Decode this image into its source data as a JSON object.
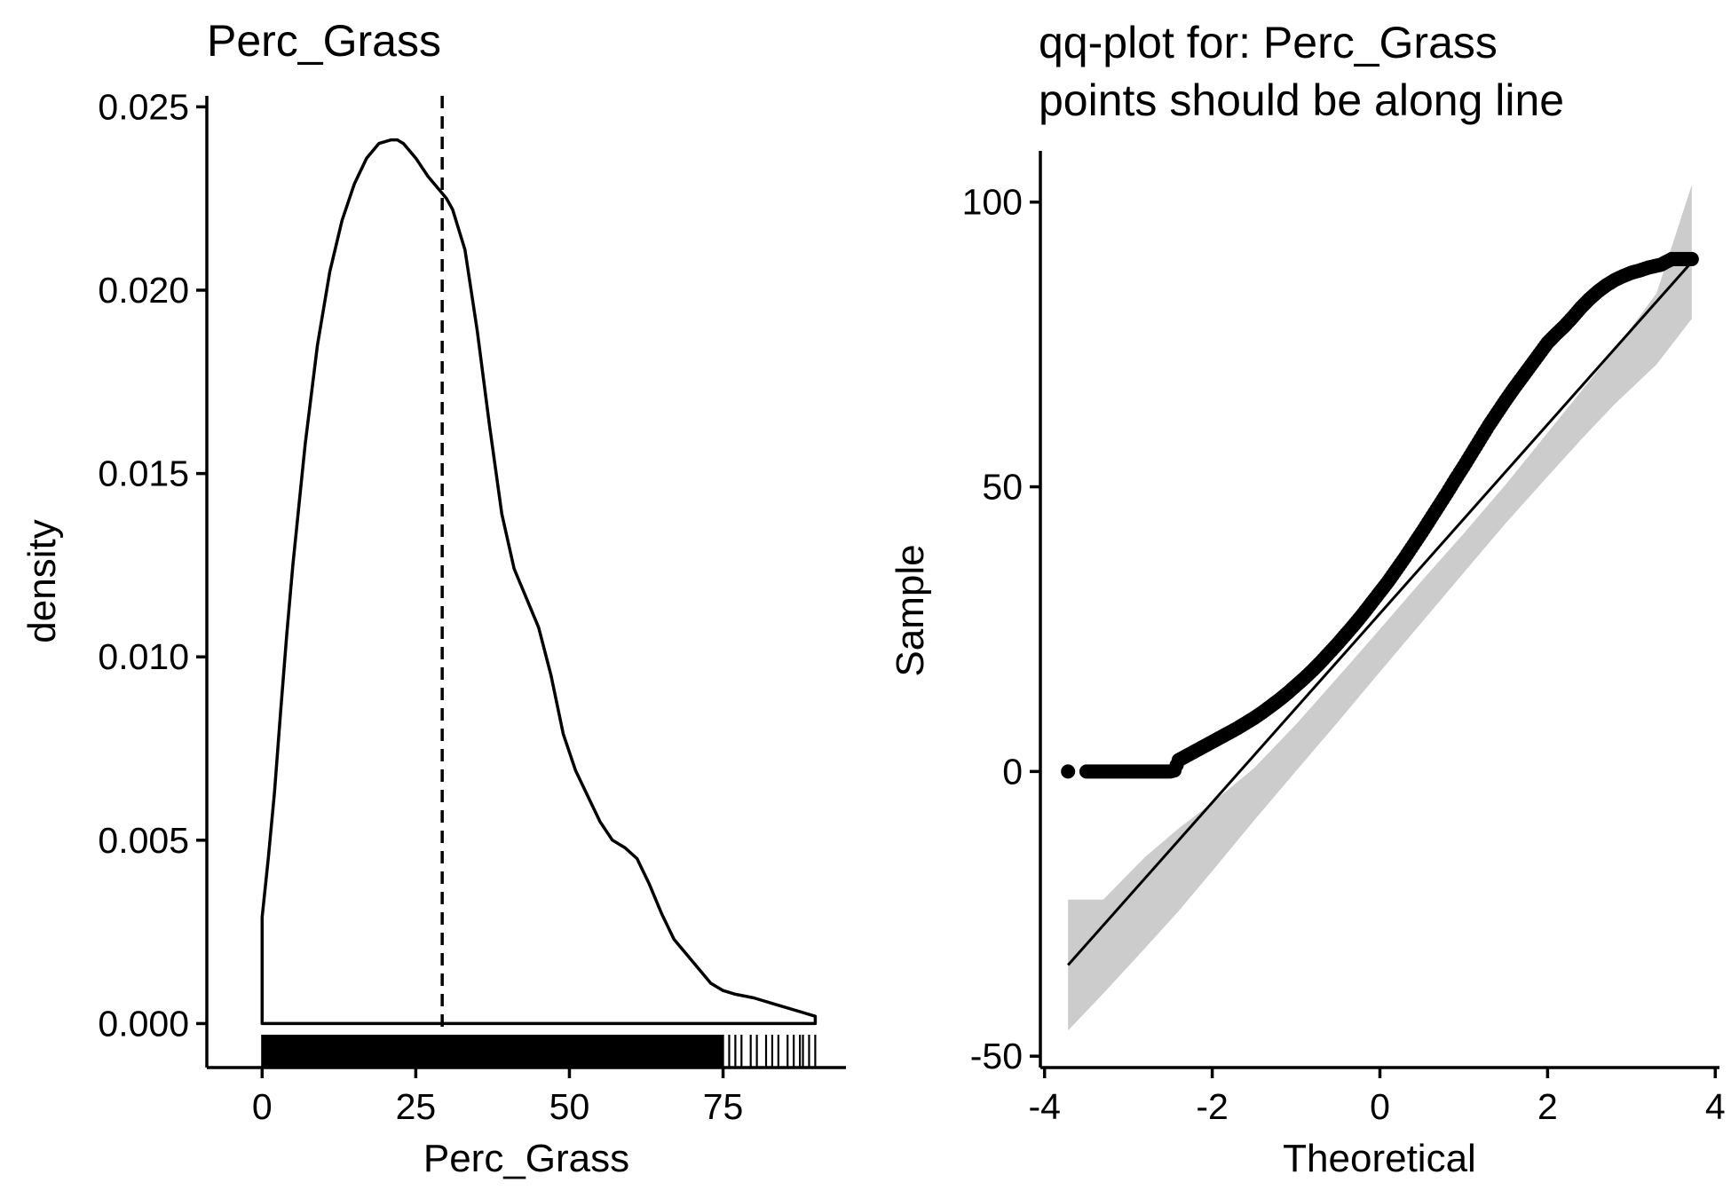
{
  "chart_data": [
    {
      "type": "line",
      "title": "Perc_Grass",
      "xlabel": "Perc_Grass",
      "ylabel": "density",
      "xlim": [
        -9,
        95
      ],
      "ylim": [
        -0.0012,
        0.0253
      ],
      "x_ticks": [
        0,
        25,
        50,
        75
      ],
      "x_tick_labels": [
        "0",
        "25",
        "50",
        "75"
      ],
      "y_ticks": [
        0,
        0.005,
        0.01,
        0.015,
        0.02,
        0.025
      ],
      "y_tick_labels": [
        "0.000",
        "0.005",
        "0.010",
        "0.015",
        "0.020",
        "0.025"
      ],
      "grid": false,
      "density_curve": {
        "x": [
          0,
          0,
          1,
          2,
          3,
          4,
          5,
          7,
          9,
          11,
          13,
          15,
          17,
          19,
          21,
          22,
          23,
          25,
          27,
          29,
          30,
          31,
          33,
          35,
          37,
          39,
          41,
          43,
          45,
          47,
          49,
          51,
          53,
          55,
          57,
          59,
          61,
          63,
          65,
          67,
          69,
          71,
          73,
          75,
          77,
          80,
          84,
          88,
          90,
          90
        ],
        "y": [
          0,
          0.0029,
          0.0045,
          0.0063,
          0.0085,
          0.0106,
          0.0125,
          0.0158,
          0.0185,
          0.0205,
          0.0219,
          0.0229,
          0.0236,
          0.024,
          0.0241,
          0.0241,
          0.024,
          0.0236,
          0.0231,
          0.0227,
          0.0225,
          0.0222,
          0.0211,
          0.0189,
          0.0163,
          0.0139,
          0.0124,
          0.0116,
          0.0108,
          0.0095,
          0.0079,
          0.0069,
          0.0062,
          0.0055,
          0.005,
          0.0048,
          0.0045,
          0.0038,
          0.003,
          0.0023,
          0.0019,
          0.0015,
          0.0011,
          0.0009,
          0.0008,
          0.0007,
          0.0005,
          0.0003,
          0.0002,
          0
        ]
      },
      "mean_line": 29.3,
      "rug": {
        "dense_range": [
          0,
          75
        ],
        "sparse_x": [
          76,
          77,
          78,
          79.5,
          80.5,
          82,
          83,
          84,
          85.5,
          86.5,
          87.5,
          88,
          89,
          90
        ]
      }
    },
    {
      "type": "scatter",
      "title": "qq-plot for: Perc_Grass\npoints should be along line",
      "xlabel": "Theoretical",
      "ylabel": "Sample",
      "xlim": [
        -4.05,
        4.05
      ],
      "ylim": [
        -52,
        109
      ],
      "x_ticks": [
        -4,
        -2,
        0,
        2,
        4
      ],
      "x_tick_labels": [
        "-4",
        "-2",
        "0",
        "2",
        "4"
      ],
      "y_ticks": [
        -50,
        0,
        50,
        100
      ],
      "y_tick_labels": [
        "-50",
        "0",
        "50",
        "100"
      ],
      "grid": false,
      "reference_line": {
        "x": [
          -3.72,
          3.72
        ],
        "y": [
          -34,
          89.5
        ]
      },
      "confidence_band": {
        "x": [
          -3.72,
          -3.3,
          -2.8,
          -2.4,
          -2,
          -1.5,
          -1,
          -0.5,
          0,
          0.5,
          1,
          1.5,
          2,
          2.4,
          2.8,
          3.3,
          3.72
        ],
        "lower": [
          -45.5,
          -39,
          -31,
          -24.5,
          -17.5,
          -8.6,
          0.1,
          8.7,
          17.5,
          26.2,
          34.9,
          43.6,
          51.8,
          58.3,
          64.5,
          71.5,
          79.5
        ],
        "upper": [
          -22.5,
          -22.5,
          -15,
          -10,
          -5.5,
          0.6,
          8.3,
          16.6,
          25,
          33.5,
          41.8,
          50.4,
          59.5,
          66.8,
          74,
          84,
          103
        ]
      },
      "qq_points": {
        "theoretical": [
          -3.72,
          -3.5,
          -3.4,
          -3.3,
          -3.2,
          -3.1,
          -3,
          -2.9,
          -2.8,
          -2.7,
          -2.6,
          -2.5,
          -2.45,
          -2.4,
          -2.3,
          -2.2,
          -2.1,
          -2,
          -1.9,
          -1.8,
          -1.7,
          -1.6,
          -1.5,
          -1.4,
          -1.3,
          -1.2,
          -1.1,
          -1,
          -0.9,
          -0.8,
          -0.7,
          -0.6,
          -0.5,
          -0.4,
          -0.3,
          -0.2,
          -0.1,
          0,
          0.1,
          0.2,
          0.3,
          0.4,
          0.5,
          0.6,
          0.7,
          0.8,
          0.9,
          1,
          1.1,
          1.2,
          1.3,
          1.4,
          1.5,
          1.6,
          1.7,
          1.8,
          1.9,
          2,
          2.1,
          2.2,
          2.3,
          2.4,
          2.5,
          2.6,
          2.7,
          2.8,
          2.9,
          3,
          3.1,
          3.2,
          3.35,
          3.48,
          3.72
        ],
        "sample": [
          0,
          0,
          0,
          0,
          0,
          0,
          0,
          0,
          0,
          0,
          0,
          0,
          0.2,
          2,
          2.8,
          3.6,
          4.4,
          5.2,
          6,
          6.8,
          7.6,
          8.5,
          9.4,
          10.4,
          11.5,
          12.6,
          13.8,
          15.1,
          16.4,
          17.8,
          19.3,
          20.9,
          22.5,
          24.2,
          25.9,
          27.7,
          29.6,
          31.5,
          33.4,
          35.5,
          37.6,
          39.8,
          42,
          44.3,
          46.6,
          48.9,
          51.3,
          53.6,
          56,
          58.4,
          60.8,
          63,
          65.2,
          67.3,
          69.3,
          71.3,
          73.3,
          75.3,
          76.8,
          78.2,
          79.8,
          81.5,
          83,
          84.3,
          85.4,
          86.3,
          87,
          87.6,
          88,
          88.5,
          89,
          90,
          90
        ]
      }
    }
  ]
}
